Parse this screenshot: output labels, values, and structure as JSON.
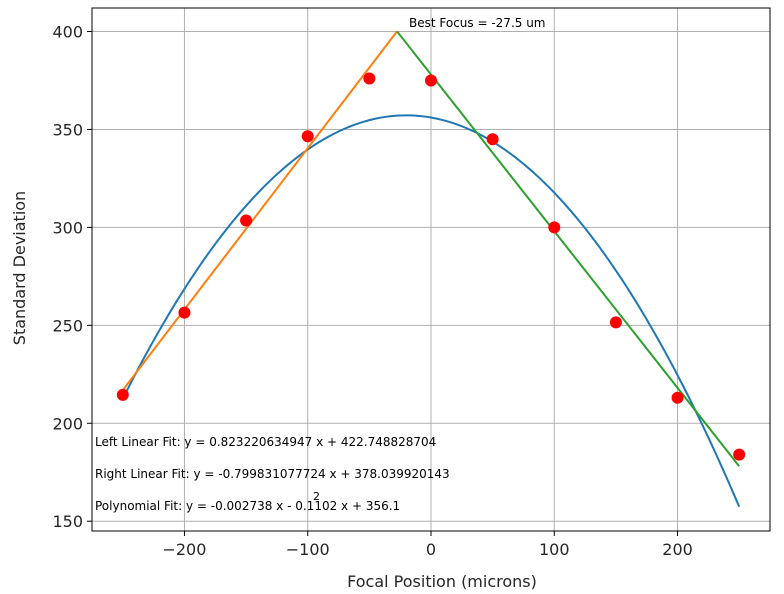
{
  "chart_data": {
    "type": "scatter",
    "title": "",
    "xlabel": "Focal Position (microns)",
    "ylabel": "Standard Deviation",
    "xlim": [
      -275,
      275
    ],
    "ylim": [
      145,
      412
    ],
    "xticks": [
      -200,
      -100,
      0,
      100,
      200
    ],
    "yticks": [
      150,
      200,
      250,
      300,
      350,
      400
    ],
    "grid": true,
    "points": {
      "color": "#ff0000",
      "x": [
        -250,
        -200,
        -150,
        -100,
        -50,
        0,
        50,
        100,
        150,
        200,
        250
      ],
      "y": [
        214.5,
        256.5,
        303.5,
        346.5,
        376,
        375,
        345,
        300,
        251.5,
        213,
        184
      ]
    },
    "series": [
      {
        "kind": "polynomial",
        "color": "#1f77b4",
        "coeffs": [
          -0.002738,
          -0.1102,
          356.1
        ],
        "x_range": [
          -250,
          250
        ]
      },
      {
        "kind": "linear",
        "color": "#ff7f0e",
        "slope": 0.823220634947,
        "intercept": 422.748828704,
        "x_range": [
          -250,
          -27.5
        ]
      },
      {
        "kind": "linear",
        "color": "#2ca02c",
        "slope": -0.799831077724,
        "intercept": 378.039920143,
        "x_range": [
          -27.5,
          250
        ]
      }
    ],
    "annotations": {
      "best_focus": "Best Focus = -27.5 um",
      "left_fit": "Left Linear Fit: y = 0.823220634947 x + 422.748828704",
      "right_fit": "Right Linear Fit: y = -0.799831077724 x + 378.039920143",
      "poly_fit": "Polynomial Fit: y = -0.002738 x - 0.1102 x + 356.1",
      "poly_exponent": "2"
    }
  }
}
